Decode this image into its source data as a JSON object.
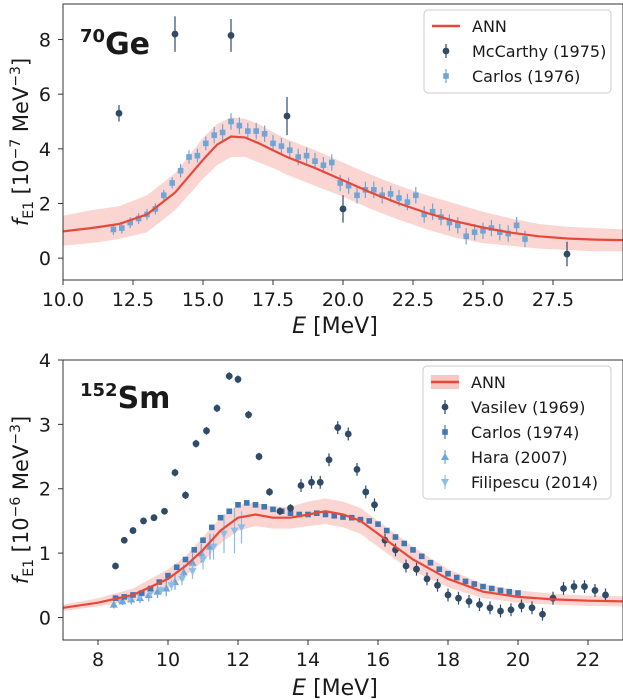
{
  "chart_data": [
    {
      "type": "scatter",
      "nucleus": "Ge",
      "nucleus_mass": "70",
      "xlabel_italic": "E",
      "xlabel_unit": " [MeV]",
      "ylabel_sym": "f",
      "ylabel_sub": "E1",
      "ylabel_pre": " [10",
      "ylabel_exp": "−7",
      "ylabel_unit": " MeV",
      "ylabel_unit_exp": "−3",
      "ylabel_close": "]",
      "xlim": [
        10,
        30
      ],
      "ylim": [
        -0.8,
        9.3
      ],
      "xticks": [
        "10.0",
        "12.5",
        "15.0",
        "17.5",
        "20.0",
        "22.5",
        "25.0",
        "27.5"
      ],
      "xtick_values": [
        10,
        12.5,
        15,
        17.5,
        20,
        22.5,
        25,
        27.5
      ],
      "yticks": [
        "0",
        "2",
        "4",
        "6",
        "8"
      ],
      "ytick_values": [
        0,
        2,
        4,
        6,
        8
      ],
      "grid": false,
      "legend_position": "top-right",
      "colors": {
        "ann": "#e8483a",
        "band": "#f8c7c1",
        "dark": "#2f4b68",
        "light": "#6fa6d6"
      },
      "series": [
        {
          "name": "ANN",
          "kind": "line",
          "x": [
            10,
            11,
            12,
            13,
            14,
            15,
            15.5,
            16,
            16.5,
            17,
            17.5,
            18,
            19,
            20,
            21,
            22,
            23,
            24,
            25,
            26,
            27,
            28,
            29,
            30
          ],
          "y": [
            0.98,
            1.1,
            1.25,
            1.6,
            2.4,
            3.6,
            4.15,
            4.45,
            4.42,
            4.2,
            3.95,
            3.7,
            3.3,
            2.85,
            2.4,
            2.0,
            1.65,
            1.35,
            1.12,
            0.93,
            0.8,
            0.72,
            0.68,
            0.66
          ],
          "upper": [
            1.55,
            1.75,
            1.9,
            2.3,
            3.1,
            4.4,
            4.9,
            5.15,
            5.1,
            4.9,
            4.6,
            4.35,
            3.95,
            3.5,
            3.05,
            2.65,
            2.3,
            2.0,
            1.7,
            1.45,
            1.25,
            1.15,
            1.1,
            1.05
          ],
          "lower": [
            0.45,
            0.55,
            0.7,
            0.95,
            1.75,
            2.9,
            3.4,
            3.7,
            3.7,
            3.5,
            3.3,
            3.05,
            2.65,
            2.25,
            1.8,
            1.4,
            1.05,
            0.75,
            0.55,
            0.45,
            0.35,
            0.3,
            0.25,
            0.25
          ]
        },
        {
          "name": "McCarthy (1975)",
          "kind": "points",
          "marker": "circle",
          "x": [
            12,
            14,
            16,
            18,
            20,
            28
          ],
          "y": [
            5.3,
            8.2,
            8.15,
            5.2,
            1.8,
            0.15
          ],
          "err": [
            0.3,
            0.65,
            0.6,
            0.7,
            0.5,
            0.45
          ]
        },
        {
          "name": "Carlos (1976)",
          "kind": "points",
          "marker": "square",
          "x": [
            11.8,
            12.1,
            12.4,
            12.7,
            13.0,
            13.3,
            13.6,
            13.9,
            14.2,
            14.5,
            14.8,
            15.1,
            15.4,
            15.7,
            16.0,
            16.3,
            16.6,
            16.9,
            17.2,
            17.5,
            17.8,
            18.1,
            18.4,
            18.7,
            19.0,
            19.3,
            19.6,
            19.9,
            20.2,
            20.5,
            20.8,
            21.1,
            21.4,
            21.7,
            22.0,
            22.3,
            22.6,
            22.9,
            23.2,
            23.5,
            23.8,
            24.1,
            24.4,
            24.7,
            25.0,
            25.3,
            25.6,
            25.9,
            26.2,
            26.5
          ],
          "y": [
            1.05,
            1.1,
            1.3,
            1.45,
            1.6,
            1.8,
            2.3,
            2.75,
            3.2,
            3.7,
            3.75,
            4.2,
            4.5,
            4.6,
            5.0,
            4.85,
            4.65,
            4.65,
            4.55,
            4.2,
            4.1,
            3.95,
            3.7,
            3.75,
            3.55,
            3.4,
            3.5,
            2.75,
            2.65,
            2.3,
            2.5,
            2.5,
            2.3,
            2.35,
            2.2,
            2.05,
            2.3,
            1.6,
            1.7,
            1.5,
            1.3,
            1.2,
            0.8,
            0.95,
            1.0,
            1.1,
            0.95,
            0.9,
            1.2,
            0.7
          ],
          "err": [
            0.2,
            0.2,
            0.2,
            0.2,
            0.2,
            0.2,
            0.2,
            0.2,
            0.25,
            0.25,
            0.25,
            0.25,
            0.3,
            0.3,
            0.3,
            0.3,
            0.3,
            0.3,
            0.3,
            0.3,
            0.3,
            0.3,
            0.3,
            0.3,
            0.3,
            0.3,
            0.3,
            0.3,
            0.3,
            0.3,
            0.3,
            0.3,
            0.3,
            0.3,
            0.3,
            0.3,
            0.3,
            0.3,
            0.3,
            0.3,
            0.3,
            0.3,
            0.3,
            0.3,
            0.3,
            0.3,
            0.3,
            0.3,
            0.3,
            0.3
          ]
        }
      ]
    },
    {
      "type": "scatter",
      "nucleus": "Sm",
      "nucleus_mass": "152",
      "xlabel_italic": "E",
      "xlabel_unit": " [MeV]",
      "ylabel_sym": "f",
      "ylabel_sub": "E1",
      "ylabel_pre": " [10",
      "ylabel_exp": "−6",
      "ylabel_unit": " MeV",
      "ylabel_unit_exp": "−3",
      "ylabel_close": "]",
      "xlim": [
        7,
        23
      ],
      "ylim": [
        -0.35,
        4.0
      ],
      "xticks": [
        "8",
        "10",
        "12",
        "14",
        "16",
        "18",
        "20",
        "22"
      ],
      "xtick_values": [
        8,
        10,
        12,
        14,
        16,
        18,
        20,
        22
      ],
      "yticks": [
        "0",
        "1",
        "2",
        "3",
        "4"
      ],
      "ytick_values": [
        0,
        1,
        2,
        3,
        4
      ],
      "grid": false,
      "legend_position": "top-right",
      "colors": {
        "ann": "#e8483a",
        "band": "#f8c7c1",
        "dark": "#2f4b68",
        "mid": "#3f78b2",
        "light": "#6fa6d6",
        "lighter": "#8cbde6"
      },
      "series": [
        {
          "name": "ANN",
          "kind": "line",
          "x": [
            7,
            8,
            9,
            10,
            10.5,
            11,
            11.5,
            12,
            12.5,
            13,
            13.5,
            14,
            14.5,
            15,
            15.5,
            16,
            16.5,
            17,
            18,
            19,
            20,
            21,
            22,
            23
          ],
          "y": [
            0.15,
            0.23,
            0.35,
            0.6,
            0.8,
            1.05,
            1.35,
            1.55,
            1.6,
            1.55,
            1.55,
            1.6,
            1.65,
            1.6,
            1.5,
            1.3,
            1.1,
            0.9,
            0.6,
            0.4,
            0.32,
            0.28,
            0.26,
            0.25
          ],
          "upper": [
            0.2,
            0.3,
            0.45,
            0.75,
            0.95,
            1.25,
            1.55,
            1.75,
            1.78,
            1.72,
            1.72,
            1.8,
            1.85,
            1.8,
            1.7,
            1.5,
            1.3,
            1.1,
            0.75,
            0.52,
            0.42,
            0.37,
            0.34,
            0.33
          ],
          "lower": [
            0.1,
            0.17,
            0.26,
            0.45,
            0.65,
            0.87,
            1.15,
            1.35,
            1.42,
            1.38,
            1.38,
            1.42,
            1.45,
            1.4,
            1.3,
            1.1,
            0.9,
            0.72,
            0.47,
            0.3,
            0.23,
            0.2,
            0.18,
            0.17
          ]
        },
        {
          "name": "Vasilev (1969)",
          "kind": "points",
          "marker": "circle",
          "x": [
            8.5,
            8.75,
            9.0,
            9.3,
            9.6,
            9.9,
            10.2,
            10.5,
            10.8,
            11.1,
            11.4,
            11.75,
            12.0,
            12.3,
            12.6,
            12.9,
            13.2,
            13.5,
            13.8,
            14.1,
            14.35,
            14.6,
            14.85,
            15.15,
            15.4,
            15.65,
            15.9,
            16.2,
            16.5,
            16.8,
            17.1,
            17.4,
            17.7,
            18.0,
            18.3,
            18.6,
            18.9,
            19.2,
            19.5,
            19.8,
            20.1,
            20.4,
            20.7,
            21.0,
            21.3,
            21.6,
            21.9,
            22.2,
            22.5
          ],
          "y": [
            0.8,
            1.2,
            1.35,
            1.5,
            1.55,
            1.65,
            2.25,
            1.9,
            2.7,
            2.9,
            3.25,
            3.75,
            3.7,
            3.15,
            2.5,
            1.95,
            1.65,
            1.7,
            2.05,
            2.1,
            2.1,
            2.45,
            2.95,
            2.85,
            2.3,
            1.95,
            1.75,
            1.2,
            1.05,
            0.8,
            0.75,
            0.6,
            0.5,
            0.35,
            0.3,
            0.25,
            0.2,
            0.15,
            0.1,
            0.12,
            0.18,
            0.15,
            0.05,
            0.3,
            0.45,
            0.48,
            0.48,
            0.42,
            0.35
          ],
          "err": [
            0.05,
            0.05,
            0.05,
            0.05,
            0.05,
            0.05,
            0.06,
            0.06,
            0.06,
            0.06,
            0.06,
            0.06,
            0.06,
            0.06,
            0.06,
            0.06,
            0.06,
            0.06,
            0.1,
            0.1,
            0.1,
            0.1,
            0.1,
            0.1,
            0.1,
            0.1,
            0.1,
            0.1,
            0.1,
            0.1,
            0.1,
            0.1,
            0.1,
            0.1,
            0.1,
            0.1,
            0.1,
            0.1,
            0.1,
            0.1,
            0.1,
            0.1,
            0.1,
            0.1,
            0.1,
            0.1,
            0.1,
            0.1,
            0.1
          ]
        },
        {
          "name": "Carlos (1974)",
          "kind": "points",
          "marker": "square",
          "x": [
            8.5,
            8.75,
            9.0,
            9.25,
            9.5,
            9.75,
            10.0,
            10.25,
            10.5,
            10.75,
            11.0,
            11.25,
            11.5,
            11.75,
            12.0,
            12.25,
            12.5,
            12.75,
            13.0,
            13.25,
            13.5,
            13.75,
            14.0,
            14.25,
            14.5,
            14.75,
            15.0,
            15.25,
            15.5,
            15.75,
            16.0,
            16.25,
            16.5,
            16.75,
            17.0,
            17.25,
            17.5,
            17.75,
            18.0,
            18.25,
            18.5,
            18.75,
            19.0,
            19.25,
            19.5,
            19.75,
            20.0
          ],
          "y": [
            0.3,
            0.32,
            0.35,
            0.38,
            0.45,
            0.55,
            0.65,
            0.78,
            0.9,
            1.05,
            1.2,
            1.4,
            1.55,
            1.65,
            1.75,
            1.78,
            1.75,
            1.72,
            1.68,
            1.65,
            1.62,
            1.6,
            1.6,
            1.62,
            1.6,
            1.58,
            1.56,
            1.55,
            1.52,
            1.5,
            1.45,
            1.35,
            1.25,
            1.15,
            1.05,
            0.95,
            0.85,
            0.75,
            0.68,
            0.62,
            0.56,
            0.52,
            0.48,
            0.45,
            0.42,
            0.4,
            0.38
          ],
          "err": [
            0.03,
            0.03,
            0.03,
            0.03,
            0.03,
            0.03,
            0.03,
            0.03,
            0.03,
            0.03,
            0.03,
            0.03,
            0.03,
            0.03,
            0.03,
            0.03,
            0.03,
            0.03,
            0.03,
            0.03,
            0.03,
            0.03,
            0.03,
            0.03,
            0.03,
            0.03,
            0.03,
            0.03,
            0.03,
            0.03,
            0.03,
            0.03,
            0.03,
            0.03,
            0.03,
            0.03,
            0.03,
            0.03,
            0.03,
            0.03,
            0.03,
            0.03,
            0.03,
            0.03,
            0.03,
            0.03,
            0.03
          ]
        },
        {
          "name": "Hara (2007)",
          "kind": "points",
          "marker": "triangle-up",
          "x": [
            8.45,
            8.7,
            8.95,
            9.2,
            9.45,
            9.7,
            9.95,
            10.2,
            10.45,
            10.7,
            10.95,
            11.2
          ],
          "y": [
            0.2,
            0.25,
            0.28,
            0.3,
            0.35,
            0.4,
            0.45,
            0.55,
            0.7,
            0.85,
            1.0,
            1.1
          ],
          "err": [
            0.06,
            0.06,
            0.08,
            0.08,
            0.1,
            0.1,
            0.12,
            0.12,
            0.12,
            0.15,
            0.15,
            0.2
          ]
        },
        {
          "name": "Filipescu (2014)",
          "kind": "points",
          "marker": "triangle-down",
          "x": [
            8.6,
            8.9,
            9.2,
            9.5,
            9.8,
            10.1,
            10.4,
            10.7,
            11.0,
            11.3,
            11.6,
            11.9,
            12.1
          ],
          "y": [
            0.28,
            0.3,
            0.33,
            0.38,
            0.42,
            0.5,
            0.6,
            0.72,
            0.9,
            1.1,
            1.3,
            1.35,
            1.4
          ],
          "err": [
            0.05,
            0.05,
            0.05,
            0.06,
            0.06,
            0.08,
            0.1,
            0.12,
            0.15,
            0.2,
            0.3,
            0.35,
            0.25
          ]
        }
      ]
    }
  ]
}
